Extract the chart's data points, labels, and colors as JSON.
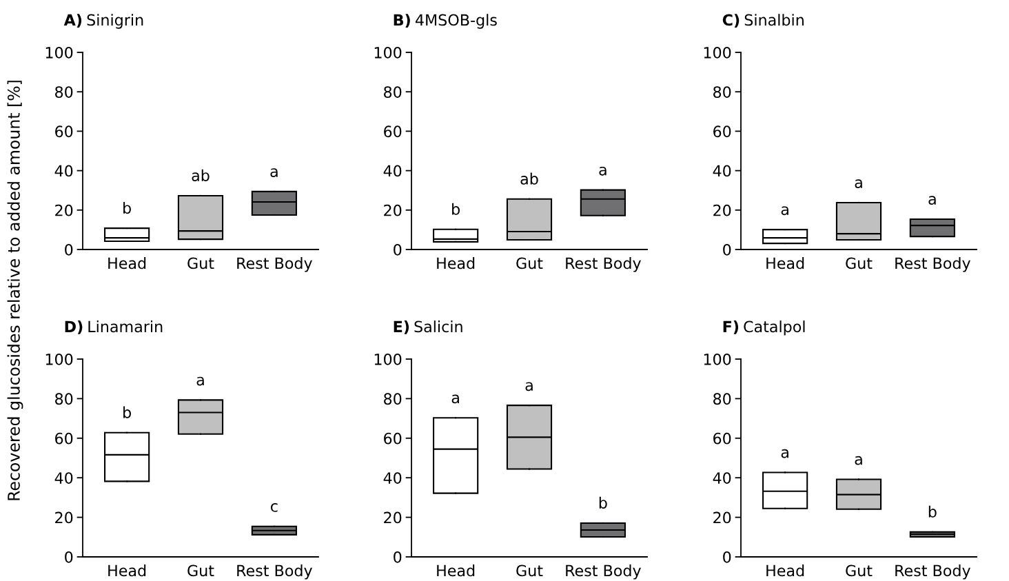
{
  "chart_data": [
    {
      "type": "box",
      "title": "A) Sinigrin",
      "ylabel": "Recovered glucosides relative to added amount [%]",
      "categories": [
        "Head",
        "Gut",
        "Rest Body"
      ],
      "colors": [
        "#ffffff",
        "#c0c0c0",
        "#707072"
      ],
      "ylim": [
        0,
        100
      ],
      "yticks": [
        0,
        20,
        40,
        60,
        80,
        100
      ],
      "boxes": [
        {
          "low": 4.2,
          "q1": 4.2,
          "median": 5.9,
          "q3": 10.8,
          "high": 10.8
        },
        {
          "low": 5.2,
          "q1": 5.2,
          "median": 9.4,
          "q3": 27.3,
          "high": 27.3
        },
        {
          "low": 17.5,
          "q1": 17.5,
          "median": 24.1,
          "q3": 29.4,
          "high": 29.4
        }
      ],
      "annotations": [
        {
          "text": "b",
          "x": "Head",
          "y": 10.8
        },
        {
          "text": "ab",
          "x": "Gut",
          "y": 27.3
        },
        {
          "text": "a",
          "x": "Rest Body",
          "y": 29.4
        }
      ]
    },
    {
      "type": "box",
      "title": "B) 4MSOB-gls",
      "categories": [
        "Head",
        "Gut",
        "Rest Body"
      ],
      "colors": [
        "#ffffff",
        "#c0c0c0",
        "#707072"
      ],
      "ylim": [
        0,
        100
      ],
      "yticks": [
        0,
        20,
        40,
        60,
        80,
        100
      ],
      "boxes": [
        {
          "low": 3.9,
          "q1": 3.9,
          "median": 5.3,
          "q3": 10.2,
          "high": 10.2
        },
        {
          "low": 4.9,
          "q1": 4.9,
          "median": 9.1,
          "q3": 25.6,
          "high": 25.6
        },
        {
          "low": 17.2,
          "q1": 17.2,
          "median": 25.6,
          "q3": 30.2,
          "high": 30.2
        }
      ],
      "annotations": [
        {
          "text": "b",
          "x": "Head",
          "y": 10.2
        },
        {
          "text": "ab",
          "x": "Gut",
          "y": 25.6
        },
        {
          "text": "a",
          "x": "Rest Body",
          "y": 30.2
        }
      ]
    },
    {
      "type": "box",
      "title": "C) Sinalbin",
      "categories": [
        "Head",
        "Gut",
        "Rest Body"
      ],
      "colors": [
        "#ffffff",
        "#c0c0c0",
        "#707072"
      ],
      "ylim": [
        0,
        100
      ],
      "yticks": [
        0,
        20,
        40,
        60,
        80,
        100
      ],
      "boxes": [
        {
          "low": 3.1,
          "q1": 3.1,
          "median": 5.9,
          "q3": 10.1,
          "high": 10.1
        },
        {
          "low": 4.9,
          "q1": 4.9,
          "median": 8,
          "q3": 23.8,
          "high": 23.8
        },
        {
          "low": 6.6,
          "q1": 6.6,
          "median": 12.2,
          "q3": 15.4,
          "high": 15.4
        }
      ],
      "annotations": [
        {
          "text": "a",
          "x": "Head",
          "y": 10.1
        },
        {
          "text": "a",
          "x": "Gut",
          "y": 23.8
        },
        {
          "text": "a",
          "x": "Rest Body",
          "y": 15.4
        }
      ]
    },
    {
      "type": "box",
      "title": "D) Linamarin",
      "categories": [
        "Head",
        "Gut",
        "Rest Body"
      ],
      "colors": [
        "#ffffff",
        "#c0c0c0",
        "#707072"
      ],
      "ylim": [
        0,
        100
      ],
      "yticks": [
        0,
        20,
        40,
        60,
        80,
        100
      ],
      "boxes": [
        {
          "low": 38.2,
          "q1": 38.2,
          "median": 51.6,
          "q3": 62.8,
          "high": 62.8
        },
        {
          "low": 62.1,
          "q1": 62.1,
          "median": 73,
          "q3": 79.3,
          "high": 79.3
        },
        {
          "low": 11.2,
          "q1": 11.2,
          "median": 13.3,
          "q3": 15.4,
          "high": 15.4
        }
      ],
      "annotations": [
        {
          "text": "b",
          "x": "Head",
          "y": 62.8
        },
        {
          "text": "a",
          "x": "Gut",
          "y": 79.3
        },
        {
          "text": "c",
          "x": "Rest Body",
          "y": 15.4
        }
      ]
    },
    {
      "type": "box",
      "title": "E) Salicin",
      "categories": [
        "Head",
        "Gut",
        "Rest Body"
      ],
      "colors": [
        "#ffffff",
        "#c0c0c0",
        "#707072"
      ],
      "ylim": [
        0,
        100
      ],
      "yticks": [
        0,
        20,
        40,
        60,
        80,
        100
      ],
      "boxes": [
        {
          "low": 32.2,
          "q1": 32.2,
          "median": 54.5,
          "q3": 70.3,
          "high": 70.3
        },
        {
          "low": 44.4,
          "q1": 44.4,
          "median": 60.5,
          "q3": 76.6,
          "high": 76.6
        },
        {
          "low": 10.1,
          "q1": 10.1,
          "median": 13.6,
          "q3": 17.1,
          "high": 17.1
        }
      ],
      "annotations": [
        {
          "text": "a",
          "x": "Head",
          "y": 70.3
        },
        {
          "text": "a",
          "x": "Gut",
          "y": 76.6
        },
        {
          "text": "b",
          "x": "Rest Body",
          "y": 17.1
        }
      ]
    },
    {
      "type": "box",
      "title": "F) Catalpol",
      "categories": [
        "Head",
        "Gut",
        "Rest Body"
      ],
      "colors": [
        "#ffffff",
        "#c0c0c0",
        "#707072"
      ],
      "ylim": [
        0,
        100
      ],
      "yticks": [
        0,
        20,
        40,
        60,
        80,
        100
      ],
      "boxes": [
        {
          "low": 24.5,
          "q1": 24.5,
          "median": 33.2,
          "q3": 42.7,
          "high": 42.7
        },
        {
          "low": 24.1,
          "q1": 24.1,
          "median": 31.5,
          "q3": 39.2,
          "high": 39.2
        },
        {
          "low": 10.1,
          "q1": 10.1,
          "median": 11.5,
          "q3": 12.6,
          "high": 12.6
        }
      ],
      "annotations": [
        {
          "text": "a",
          "x": "Head",
          "y": 42.7
        },
        {
          "text": "a",
          "x": "Gut",
          "y": 39.2
        },
        {
          "text": "b",
          "x": "Rest Body",
          "y": 12.6
        }
      ]
    }
  ]
}
